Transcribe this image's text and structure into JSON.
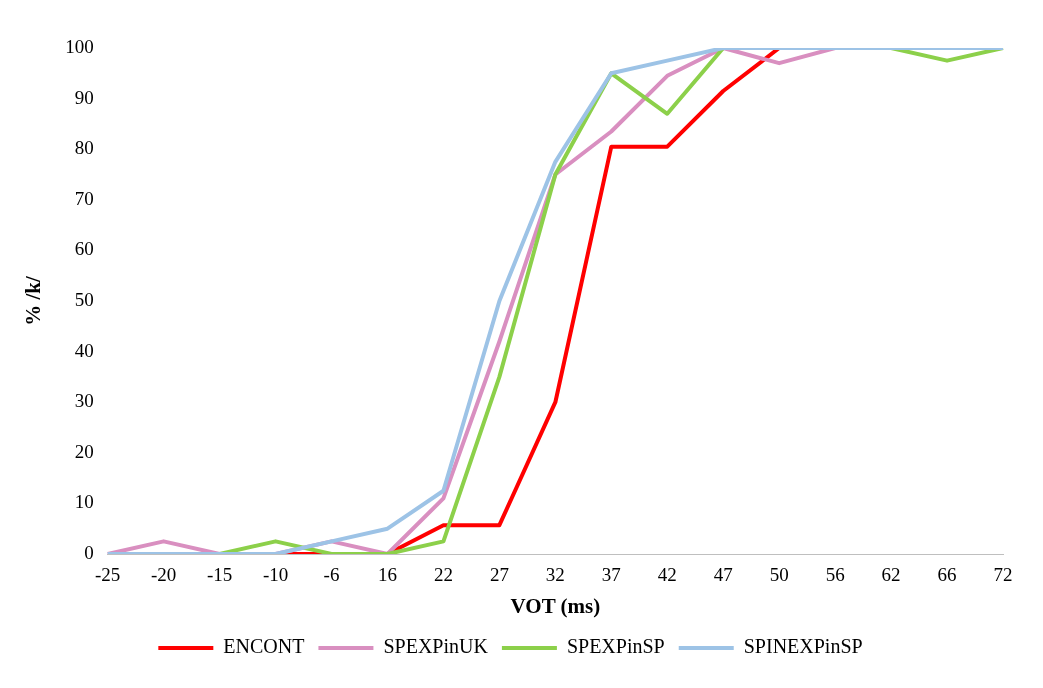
{
  "chart_data": {
    "type": "line",
    "xlabel": "VOT (ms)",
    "ylabel": "% /k/",
    "categories": [
      "-25",
      "-20",
      "-15",
      "-10",
      "-6",
      "16",
      "22",
      "27",
      "32",
      "37",
      "42",
      "47",
      "50",
      "56",
      "62",
      "66",
      "72"
    ],
    "ylim": [
      0,
      100
    ],
    "yticks": [
      0,
      10,
      20,
      30,
      40,
      50,
      60,
      70,
      80,
      90,
      100
    ],
    "grid": false,
    "legend": "bottom",
    "marker": "none",
    "line_style": "solid",
    "series": [
      {
        "name": "ENCONT",
        "color": "#ff0000",
        "values": [
          null,
          null,
          null,
          0,
          0,
          0,
          5.7,
          5.7,
          30,
          80.5,
          80.5,
          91.5,
          100,
          null,
          null,
          null,
          null
        ]
      },
      {
        "name": "SPEXPinUK",
        "color": "#d98fc0",
        "values": [
          0,
          2.5,
          0,
          0,
          2.5,
          0,
          11,
          42,
          75,
          83.5,
          94.5,
          100,
          97,
          100,
          null,
          null,
          null
        ]
      },
      {
        "name": "SPEXPinSP",
        "color": "#8cd04a",
        "values": [
          null,
          null,
          0,
          2.5,
          0,
          0,
          2.5,
          35,
          75,
          95,
          87,
          100,
          null,
          null,
          100,
          97.5,
          100
        ]
      },
      {
        "name": "SPINEXPinSP",
        "color": "#9dc3e6",
        "values": [
          0,
          0,
          0,
          0,
          2.5,
          5,
          12.5,
          50,
          77.5,
          95,
          97.5,
          100,
          100,
          100,
          100,
          100,
          100
        ]
      }
    ]
  }
}
